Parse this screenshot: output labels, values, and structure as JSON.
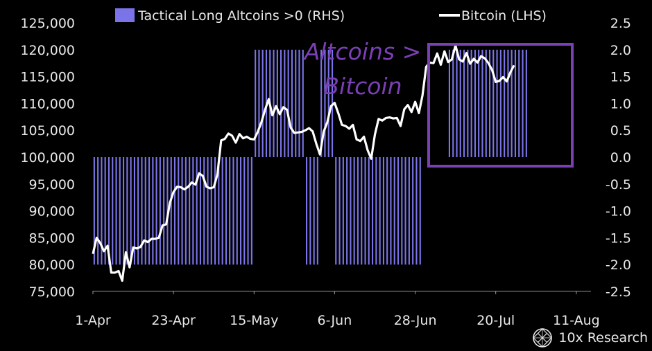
{
  "chart_data": {
    "type": "line+bar",
    "legend": {
      "bar_label": "Tactical Long Altcoins >0 (RHS)",
      "line_label": "Bitcoin (LHS)"
    },
    "left_axis": {
      "range": [
        75000,
        125000
      ],
      "ticks": [
        "75,000",
        "80,000",
        "85,000",
        "90,000",
        "95,000",
        "100,000",
        "105,000",
        "110,000",
        "115,000",
        "120,000",
        "125,000"
      ]
    },
    "right_axis": {
      "range": [
        -2.5,
        2.5
      ],
      "ticks": [
        "-2.5",
        "-2.0",
        "-1.5",
        "-1.0",
        "-0.5",
        "0.0",
        "0.5",
        "1.0",
        "1.5",
        "2.0",
        "2.5"
      ]
    },
    "x_axis": {
      "range": [
        0,
        136
      ],
      "ticks": [
        {
          "day": 0,
          "label": "1-Apr"
        },
        {
          "day": 22,
          "label": "23-Apr"
        },
        {
          "day": 44,
          "label": "15-May"
        },
        {
          "day": 66,
          "label": "6-Jun"
        },
        {
          "day": 88,
          "label": "28-Jun"
        },
        {
          "day": 110,
          "label": "20-Jul"
        },
        {
          "day": 132,
          "label": "11-Aug"
        }
      ]
    },
    "bitcoin_series": [
      [
        0,
        82000
      ],
      [
        1,
        85000
      ],
      [
        2,
        84000
      ],
      [
        3,
        82500
      ],
      [
        4,
        83500
      ],
      [
        5,
        78500
      ],
      [
        6,
        78500
      ],
      [
        7,
        78800
      ],
      [
        8,
        77000
      ],
      [
        9,
        82300
      ],
      [
        10,
        79500
      ],
      [
        11,
        83200
      ],
      [
        12,
        83000
      ],
      [
        13,
        83300
      ],
      [
        14,
        84500
      ],
      [
        15,
        84200
      ],
      [
        16,
        84800
      ],
      [
        17,
        84800
      ],
      [
        18,
        85000
      ],
      [
        19,
        87300
      ],
      [
        20,
        87500
      ],
      [
        21,
        91500
      ],
      [
        22,
        93500
      ],
      [
        23,
        94500
      ],
      [
        24,
        94400
      ],
      [
        25,
        94000
      ],
      [
        26,
        94500
      ],
      [
        27,
        95300
      ],
      [
        28,
        94900
      ],
      [
        29,
        97000
      ],
      [
        30,
        96500
      ],
      [
        31,
        94500
      ],
      [
        32,
        94200
      ],
      [
        33,
        94400
      ],
      [
        34,
        96800
      ],
      [
        35,
        103100
      ],
      [
        36,
        103400
      ],
      [
        37,
        104400
      ],
      [
        38,
        104000
      ],
      [
        39,
        102700
      ],
      [
        40,
        104300
      ],
      [
        41,
        103500
      ],
      [
        42,
        103800
      ],
      [
        43,
        103400
      ],
      [
        44,
        103300
      ],
      [
        45,
        104700
      ],
      [
        46,
        106500
      ],
      [
        47,
        108800
      ],
      [
        48,
        110800
      ],
      [
        49,
        107800
      ],
      [
        50,
        109500
      ],
      [
        51,
        108000
      ],
      [
        52,
        109300
      ],
      [
        53,
        108800
      ],
      [
        54,
        105500
      ],
      [
        55,
        104500
      ],
      [
        56,
        104600
      ],
      [
        57,
        104700
      ],
      [
        58,
        105000
      ],
      [
        59,
        105400
      ],
      [
        60,
        104800
      ],
      [
        61,
        102500
      ],
      [
        62,
        100500
      ],
      [
        63,
        104700
      ],
      [
        64,
        106500
      ],
      [
        65,
        109500
      ],
      [
        66,
        110100
      ],
      [
        67,
        108200
      ],
      [
        68,
        106000
      ],
      [
        69,
        105800
      ],
      [
        70,
        105300
      ],
      [
        71,
        106000
      ],
      [
        72,
        103300
      ],
      [
        73,
        103000
      ],
      [
        74,
        103800
      ],
      [
        75,
        101300
      ],
      [
        76,
        99700
      ],
      [
        77,
        104200
      ],
      [
        78,
        107100
      ],
      [
        79,
        106800
      ],
      [
        80,
        107300
      ],
      [
        81,
        107400
      ],
      [
        82,
        107200
      ],
      [
        83,
        107300
      ],
      [
        84,
        105800
      ],
      [
        85,
        108900
      ],
      [
        86,
        109700
      ],
      [
        87,
        108400
      ],
      [
        88,
        110300
      ],
      [
        89,
        108200
      ],
      [
        90,
        111500
      ],
      [
        91,
        116800
      ],
      [
        92,
        117600
      ],
      [
        93,
        117500
      ],
      [
        94,
        119300
      ],
      [
        95,
        117200
      ],
      [
        96,
        119700
      ],
      [
        97,
        117700
      ],
      [
        98,
        118200
      ],
      [
        99,
        120800
      ],
      [
        100,
        118200
      ],
      [
        101,
        117800
      ],
      [
        102,
        119400
      ],
      [
        103,
        117400
      ],
      [
        104,
        118300
      ],
      [
        105,
        117600
      ],
      [
        106,
        118800
      ],
      [
        107,
        118400
      ],
      [
        108,
        117500
      ],
      [
        109,
        116200
      ],
      [
        110,
        114000
      ],
      [
        111,
        114200
      ],
      [
        112,
        114900
      ],
      [
        113,
        114100
      ],
      [
        114,
        115800
      ],
      [
        115,
        117100
      ]
    ],
    "bar_segments": [
      {
        "start": 0,
        "end": 44,
        "value": -2.0
      },
      {
        "start": 44,
        "end": 58,
        "value": 0.0
      },
      {
        "start": 58,
        "end": 62,
        "value": -2.0
      },
      {
        "start": 62,
        "end": 66,
        "value": 0.0
      },
      {
        "start": 66,
        "end": 90,
        "value": -2.0
      },
      {
        "start": 90,
        "end": 97,
        "value": 0.0
      },
      {
        "start": 97,
        "end": 119,
        "value": 2.0
      },
      {
        "start": 119,
        "end": 136,
        "value": 0.0
      },
      {
        "start": 44,
        "end": 58,
        "value": 2.0
      },
      {
        "start": 62,
        "end": 66,
        "value": 2.0
      }
    ],
    "annotation": {
      "lines": [
        "Altcoins >",
        "Bitcoin"
      ],
      "color": "#7b3fb5"
    },
    "colors": {
      "line": "#ffffff",
      "bar": "#7b74e8",
      "text": "#e8e8e8",
      "background": "#000000"
    }
  },
  "brand": {
    "name": "10x Research"
  }
}
